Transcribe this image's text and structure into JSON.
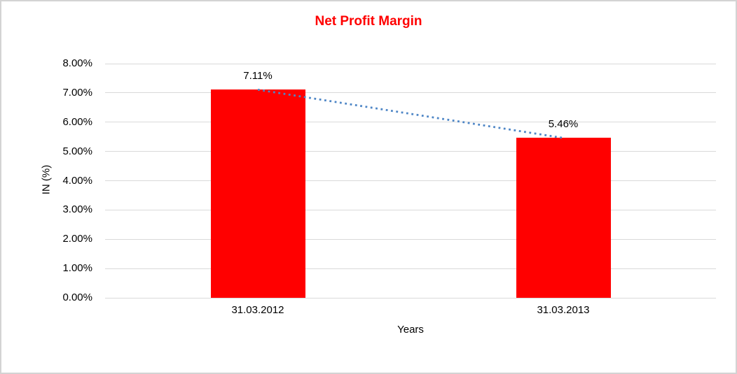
{
  "window": {
    "background_color": "#ffffff",
    "border_color": "#d3d3d3"
  },
  "chart_data": {
    "type": "bar",
    "title": "Net Profit Margin",
    "title_color": "#ff0000",
    "categories": [
      "31.03.2012",
      "31.03.2013"
    ],
    "values": [
      7.11,
      5.46
    ],
    "data_labels": [
      "7.11%",
      "5.46%"
    ],
    "xlabel": "Years",
    "ylabel": "IN (%)",
    "ylim": [
      0,
      8
    ],
    "ytick_labels": [
      "0.00%",
      "1.00%",
      "2.00%",
      "3.00%",
      "4.00%",
      "5.00%",
      "6.00%",
      "7.00%",
      "8.00%"
    ],
    "grid": true,
    "legend_position": "none",
    "bar_color": "#ff0000",
    "gridline_color": "#d9d9d9",
    "trendline": {
      "type": "linear",
      "style": "dotted",
      "color": "#4e86c6",
      "from_value": 7.11,
      "to_value": 5.46
    }
  }
}
